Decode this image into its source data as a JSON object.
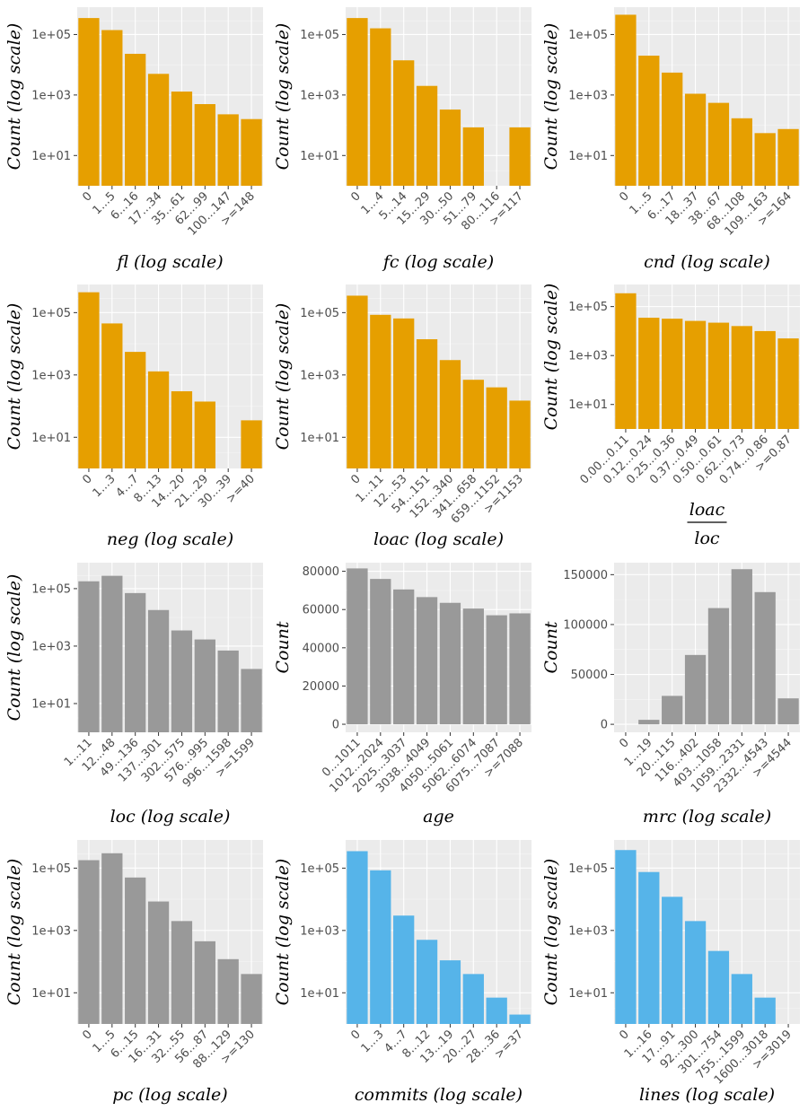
{
  "colors": {
    "orange": "#E69F00",
    "gray": "#999999",
    "blue": "#56B4E9",
    "panel": "#EBEBEB",
    "grid": "#FFFFFF"
  },
  "chart_data": [
    {
      "type": "bar",
      "scale": "log",
      "color": "orange",
      "xlabel": "fl (log scale)",
      "ylabel": "Count (log scale)",
      "categories": [
        "0",
        "1...5",
        "6...16",
        "17...34",
        "35...61",
        "62...99",
        "100...147",
        ">=148"
      ],
      "values": [
        350000,
        140000,
        23000,
        5000,
        1300,
        500,
        230,
        160
      ],
      "ylim": [
        1,
        800000
      ],
      "yticks": [
        10,
        1000,
        100000
      ],
      "ytick_labels": [
        "1e+01",
        "1e+03",
        "1e+05"
      ]
    },
    {
      "type": "bar",
      "scale": "log",
      "color": "orange",
      "xlabel": "fc (log scale)",
      "ylabel": "Count (log scale)",
      "categories": [
        "0",
        "1...4",
        "5...14",
        "15...29",
        "30...50",
        "51...79",
        "80...116",
        ">=117"
      ],
      "values": [
        350000,
        160000,
        14000,
        2000,
        330,
        85,
        0,
        85
      ],
      "ylim": [
        1,
        800000
      ],
      "yticks": [
        10,
        1000,
        100000
      ],
      "ytick_labels": [
        "1e+01",
        "1e+03",
        "1e+05"
      ]
    },
    {
      "type": "bar",
      "scale": "log",
      "color": "orange",
      "xlabel": "cnd (log scale)",
      "ylabel": "Count (log scale)",
      "categories": [
        "0",
        "1...5",
        "6...17",
        "18...37",
        "38...67",
        "68...108",
        "109...163",
        ">=164"
      ],
      "values": [
        450000,
        20000,
        5500,
        1100,
        550,
        170,
        55,
        75
      ],
      "ylim": [
        1,
        800000
      ],
      "yticks": [
        10,
        1000,
        100000
      ],
      "ytick_labels": [
        "1e+01",
        "1e+03",
        "1e+05"
      ]
    },
    {
      "type": "bar",
      "scale": "log",
      "color": "orange",
      "xlabel": "neg (log scale)",
      "ylabel": "Count (log scale)",
      "categories": [
        "0",
        "1...3",
        "4...7",
        "8...13",
        "14...20",
        "21...29",
        "30...39",
        ">=40"
      ],
      "values": [
        450000,
        45000,
        5500,
        1300,
        300,
        140,
        0,
        35
      ],
      "ylim": [
        1,
        800000
      ],
      "yticks": [
        10,
        1000,
        100000
      ],
      "ytick_labels": [
        "1e+01",
        "1e+03",
        "1e+05"
      ]
    },
    {
      "type": "bar",
      "scale": "log",
      "color": "orange",
      "xlabel": "loac (log scale)",
      "ylabel": "Count (log scale)",
      "categories": [
        "0",
        "1...11",
        "12...53",
        "54...151",
        "152...340",
        "341...658",
        "659...1152",
        ">=1153"
      ],
      "values": [
        350000,
        85000,
        65000,
        14000,
        3000,
        700,
        400,
        150
      ],
      "ylim": [
        1,
        800000
      ],
      "yticks": [
        10,
        1000,
        100000
      ],
      "ytick_labels": [
        "1e+01",
        "1e+03",
        "1e+05"
      ]
    },
    {
      "type": "bar",
      "scale": "log",
      "color": "orange",
      "xlabel_num": "loac",
      "xlabel_den": "loc",
      "ylabel": "Count (log scale)",
      "categories": [
        "0.00...0.11",
        "0.12...0.24",
        "0.25...0.36",
        "0.37...0.49",
        "0.50...0.61",
        "0.62...0.73",
        "0.74...0.86",
        ">=0.87"
      ],
      "values": [
        350000,
        35000,
        32000,
        26000,
        22000,
        16000,
        10000,
        5000
      ],
      "ylim": [
        1,
        800000
      ],
      "yticks": [
        10,
        1000,
        100000
      ],
      "ytick_labels": [
        "1e+01",
        "1e+03",
        "1e+05"
      ]
    },
    {
      "type": "bar",
      "scale": "log",
      "color": "gray",
      "xlabel": "loc (log scale)",
      "ylabel": "Count (log scale)",
      "categories": [
        "1...11",
        "12...48",
        "49...136",
        "137...301",
        "302...575",
        "576...995",
        "996...1598",
        ">=1599"
      ],
      "values": [
        180000,
        280000,
        70000,
        18000,
        3500,
        1700,
        700,
        160
      ],
      "ylim": [
        1,
        800000
      ],
      "yticks": [
        10,
        1000,
        100000
      ],
      "ytick_labels": [
        "1e+01",
        "1e+03",
        "1e+05"
      ]
    },
    {
      "type": "bar",
      "scale": "linear",
      "color": "gray",
      "xlabel": "age",
      "ylabel": "Count",
      "categories": [
        "0...1011",
        "1012...2024",
        "2025...3037",
        "3038...4049",
        "4050...5061",
        "5062...6074",
        "6075...7087",
        ">=7088"
      ],
      "values": [
        81500,
        76000,
        70500,
        66500,
        63500,
        60500,
        57000,
        58000
      ],
      "ylim": [
        -4200,
        84500
      ],
      "yticks": [
        0,
        20000,
        40000,
        60000,
        80000
      ],
      "ytick_labels": [
        "0",
        "20000",
        "40000",
        "60000",
        "80000"
      ]
    },
    {
      "type": "bar",
      "scale": "linear",
      "color": "gray",
      "xlabel": "mrc (log scale)",
      "ylabel": "Count",
      "categories": [
        "0",
        "1...19",
        "20...115",
        "116...402",
        "403...1058",
        "1059...2331",
        "2332...4543",
        ">=4544"
      ],
      "values": [
        0,
        4500,
        28500,
        69500,
        116500,
        155500,
        132500,
        26000
      ],
      "ylim": [
        -8000,
        162000
      ],
      "yticks": [
        0,
        50000,
        100000,
        150000
      ],
      "ytick_labels": [
        "0",
        "50000",
        "100000",
        "150000"
      ]
    },
    {
      "type": "bar",
      "scale": "log",
      "color": "gray",
      "xlabel": "pc (log scale)",
      "ylabel": "Count (log scale)",
      "categories": [
        "0",
        "1...5",
        "6...15",
        "16...31",
        "32...55",
        "56...87",
        "88...129",
        ">=130"
      ],
      "values": [
        180000,
        300000,
        50000,
        8500,
        2000,
        450,
        120,
        40
      ],
      "ylim": [
        1,
        800000
      ],
      "yticks": [
        10,
        1000,
        100000
      ],
      "ytick_labels": [
        "1e+01",
        "1e+03",
        "1e+05"
      ]
    },
    {
      "type": "bar",
      "scale": "log",
      "color": "blue",
      "xlabel": "commits (log scale)",
      "ylabel": "Count (log scale)",
      "categories": [
        "0",
        "1...3",
        "4...7",
        "8...12",
        "13...19",
        "20...27",
        "28...36",
        ">=37"
      ],
      "values": [
        350000,
        85000,
        3000,
        500,
        110,
        40,
        7,
        2
      ],
      "ylim": [
        1,
        800000
      ],
      "yticks": [
        10,
        1000,
        100000
      ],
      "ytick_labels": [
        "1e+01",
        "1e+03",
        "1e+05"
      ]
    },
    {
      "type": "bar",
      "scale": "log",
      "color": "blue",
      "xlabel": "lines (log scale)",
      "ylabel": "Count (log scale)",
      "categories": [
        "0",
        "1...16",
        "17...91",
        "92...300",
        "301...754",
        "755...1599",
        "1600...3018",
        ">=3019"
      ],
      "values": [
        380000,
        75000,
        12000,
        2000,
        220,
        40,
        7,
        0
      ],
      "ylim": [
        1,
        800000
      ],
      "yticks": [
        10,
        1000,
        100000
      ],
      "ytick_labels": [
        "1e+01",
        "1e+03",
        "1e+05"
      ]
    }
  ]
}
